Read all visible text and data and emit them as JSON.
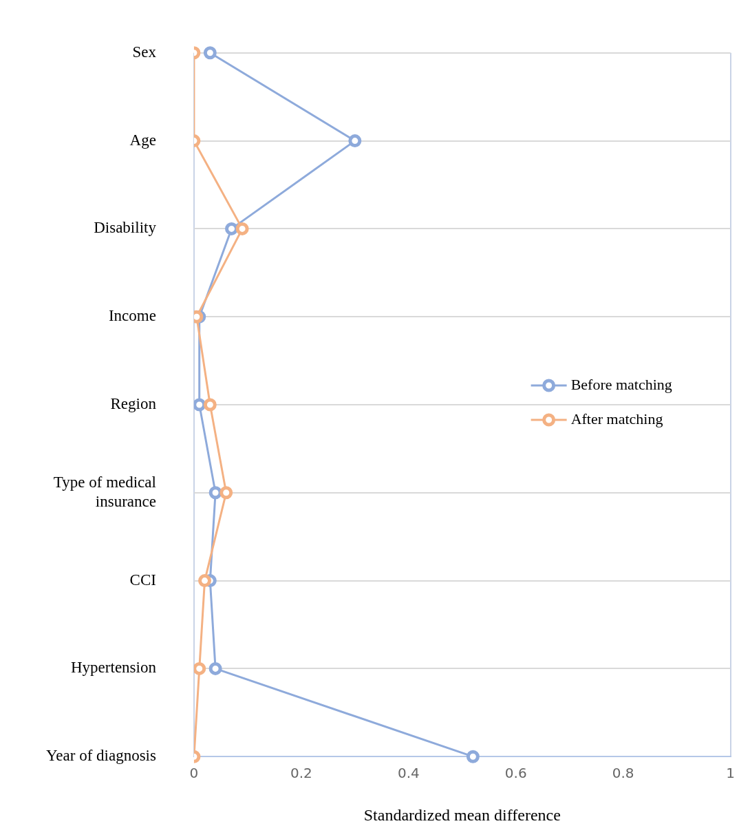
{
  "chart_data": {
    "type": "line",
    "orientation": "horizontal",
    "xlabel": "Standardized mean difference",
    "categories": [
      "Sex",
      "Age",
      "Disability",
      "Income",
      "Region",
      "Type of medical insurance",
      "CCI",
      "Hypertension",
      "Year of diagnosis"
    ],
    "series": [
      {
        "name": "Before matching",
        "color": "#8eaadb",
        "values": [
          0.03,
          0.3,
          0.07,
          0.01,
          0.01,
          0.04,
          0.03,
          0.04,
          0.52
        ]
      },
      {
        "name": "After matching",
        "color": "#f4b183",
        "values": [
          0,
          0,
          0.09,
          0.005,
          0.03,
          0.06,
          0.02,
          0.01,
          0
        ]
      }
    ],
    "xlim": [
      0,
      1
    ],
    "xticks": [
      0,
      0.2,
      0.4,
      0.6,
      0.8,
      1
    ],
    "grid": "y",
    "legend": "right",
    "marker": "circle",
    "line_style": "solid"
  }
}
